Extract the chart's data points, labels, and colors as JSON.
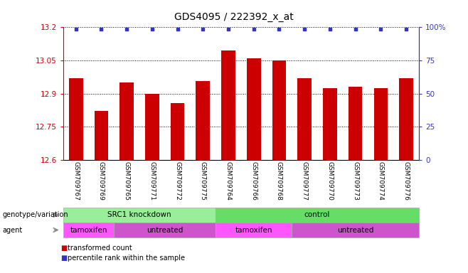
{
  "title": "GDS4095 / 222392_x_at",
  "samples": [
    "GSM709767",
    "GSM709769",
    "GSM709765",
    "GSM709771",
    "GSM709772",
    "GSM709775",
    "GSM709764",
    "GSM709766",
    "GSM709768",
    "GSM709777",
    "GSM709770",
    "GSM709773",
    "GSM709774",
    "GSM709776"
  ],
  "bar_values": [
    12.97,
    12.82,
    12.95,
    12.9,
    12.855,
    12.955,
    13.095,
    13.06,
    13.05,
    12.97,
    12.925,
    12.93,
    12.925,
    12.97
  ],
  "ylim_left": [
    12.6,
    13.2
  ],
  "ylim_right": [
    0,
    100
  ],
  "yticks_left": [
    12.6,
    12.75,
    12.9,
    13.05,
    13.2
  ],
  "yticks_right": [
    0,
    25,
    50,
    75,
    100
  ],
  "bar_color": "#cc0000",
  "percentile_color": "#3333cc",
  "genotype_groups": [
    {
      "label": "SRC1 knockdown",
      "start": 0,
      "end": 6,
      "color": "#99ee99"
    },
    {
      "label": "control",
      "start": 6,
      "end": 14,
      "color": "#66dd66"
    }
  ],
  "agent_groups": [
    {
      "label": "tamoxifen",
      "start": 0,
      "end": 2,
      "color": "#ff55ff"
    },
    {
      "label": "untreated",
      "start": 2,
      "end": 6,
      "color": "#cc55cc"
    },
    {
      "label": "tamoxifen",
      "start": 6,
      "end": 9,
      "color": "#ff55ff"
    },
    {
      "label": "untreated",
      "start": 9,
      "end": 14,
      "color": "#cc55cc"
    }
  ],
  "legend_items": [
    {
      "label": "transformed count",
      "color": "#cc0000"
    },
    {
      "label": "percentile rank within the sample",
      "color": "#3333cc"
    }
  ]
}
